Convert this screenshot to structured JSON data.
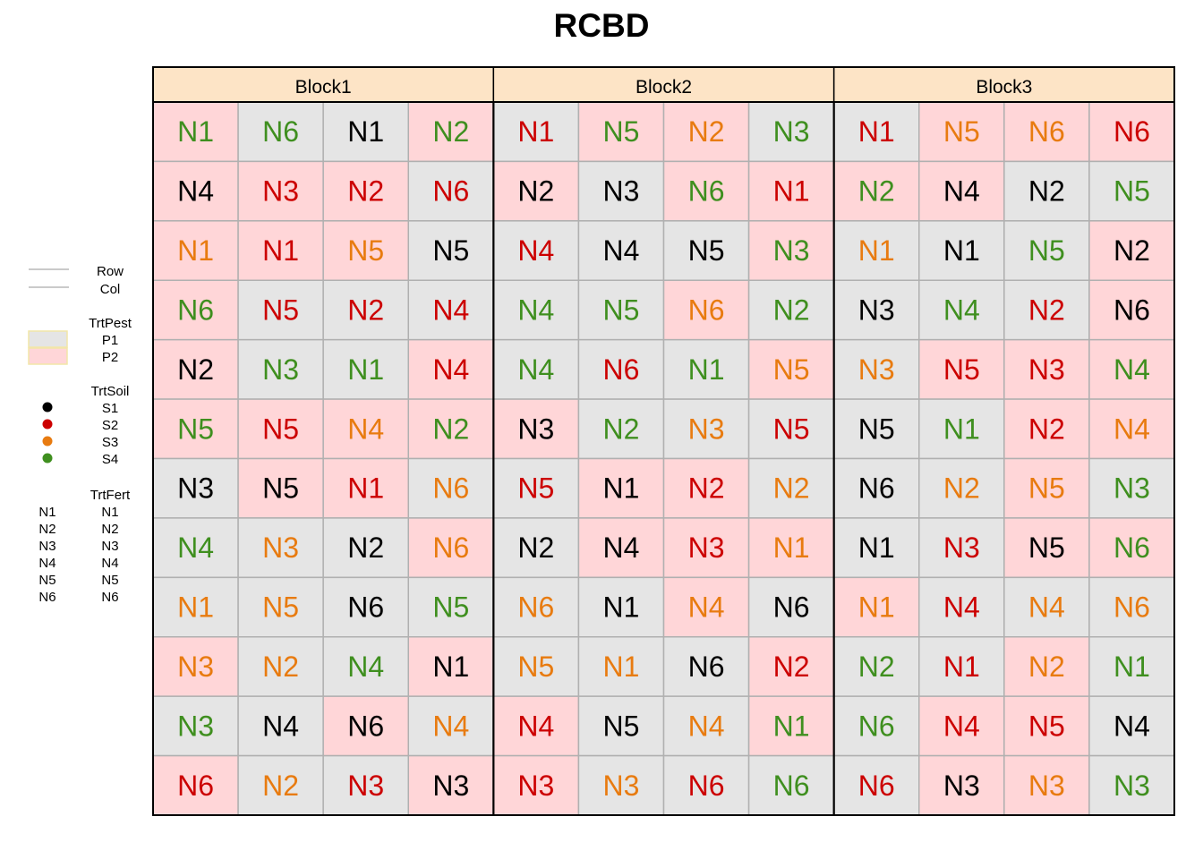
{
  "title": "RCBD",
  "legend": {
    "lines": [
      "Row",
      "Col"
    ],
    "pest_title": "TrtPest",
    "pest": [
      {
        "label": "P1",
        "color": "#e5e5e5"
      },
      {
        "label": "P2",
        "color": "#ffd6d8"
      }
    ],
    "soil_title": "TrtSoil",
    "soil": [
      {
        "label": "S1",
        "color": "#000000"
      },
      {
        "label": "S2",
        "color": "#cc0000"
      },
      {
        "label": "S3",
        "color": "#e87b10"
      },
      {
        "label": "S4",
        "color": "#3f8f1f"
      }
    ],
    "fert_title": "TrtFert",
    "fert": [
      {
        "key": "N1",
        "label": "N1"
      },
      {
        "key": "N2",
        "label": "N2"
      },
      {
        "key": "N3",
        "label": "N3"
      },
      {
        "key": "N4",
        "label": "N4"
      },
      {
        "key": "N5",
        "label": "N5"
      },
      {
        "key": "N6",
        "label": "N6"
      }
    ]
  },
  "blocks": [
    "Block1",
    "Block2",
    "Block3"
  ],
  "colors": {
    "header_fill": "#fde4c6",
    "grid_line": "#b0b0b0",
    "border": "#000000"
  },
  "chart_data": {
    "type": "table",
    "title": "RCBD",
    "pest_colors": {
      "P1": "#e5e5e5",
      "P2": "#ffd6d8"
    },
    "soil_colors": {
      "S1": "#000000",
      "S2": "#cc0000",
      "S3": "#e87b10",
      "S4": "#3f8f1f"
    },
    "rows": [
      [
        [
          "N1",
          "S4",
          "P2"
        ],
        [
          "N6",
          "S4",
          "P1"
        ],
        [
          "N1",
          "S1",
          "P1"
        ],
        [
          "N2",
          "S4",
          "P2"
        ],
        [
          "N1",
          "S2",
          "P1"
        ],
        [
          "N5",
          "S4",
          "P2"
        ],
        [
          "N2",
          "S3",
          "P2"
        ],
        [
          "N3",
          "S4",
          "P1"
        ],
        [
          "N1",
          "S2",
          "P1"
        ],
        [
          "N5",
          "S3",
          "P2"
        ],
        [
          "N6",
          "S3",
          "P2"
        ],
        [
          "N6",
          "S2",
          "P2"
        ]
      ],
      [
        [
          "N4",
          "S1",
          "P2"
        ],
        [
          "N3",
          "S2",
          "P2"
        ],
        [
          "N2",
          "S2",
          "P2"
        ],
        [
          "N6",
          "S2",
          "P1"
        ],
        [
          "N2",
          "S1",
          "P2"
        ],
        [
          "N3",
          "S1",
          "P1"
        ],
        [
          "N6",
          "S4",
          "P2"
        ],
        [
          "N1",
          "S2",
          "P2"
        ],
        [
          "N2",
          "S4",
          "P2"
        ],
        [
          "N4",
          "S1",
          "P2"
        ],
        [
          "N2",
          "S1",
          "P1"
        ],
        [
          "N5",
          "S4",
          "P1"
        ]
      ],
      [
        [
          "N1",
          "S3",
          "P2"
        ],
        [
          "N1",
          "S2",
          "P2"
        ],
        [
          "N5",
          "S3",
          "P2"
        ],
        [
          "N5",
          "S1",
          "P1"
        ],
        [
          "N4",
          "S2",
          "P1"
        ],
        [
          "N4",
          "S1",
          "P1"
        ],
        [
          "N5",
          "S1",
          "P1"
        ],
        [
          "N3",
          "S4",
          "P2"
        ],
        [
          "N1",
          "S3",
          "P1"
        ],
        [
          "N1",
          "S1",
          "P1"
        ],
        [
          "N5",
          "S4",
          "P1"
        ],
        [
          "N2",
          "S1",
          "P2"
        ]
      ],
      [
        [
          "N6",
          "S4",
          "P2"
        ],
        [
          "N5",
          "S2",
          "P1"
        ],
        [
          "N2",
          "S2",
          "P1"
        ],
        [
          "N4",
          "S2",
          "P1"
        ],
        [
          "N4",
          "S4",
          "P1"
        ],
        [
          "N5",
          "S4",
          "P1"
        ],
        [
          "N6",
          "S3",
          "P2"
        ],
        [
          "N2",
          "S4",
          "P1"
        ],
        [
          "N3",
          "S1",
          "P1"
        ],
        [
          "N4",
          "S4",
          "P1"
        ],
        [
          "N2",
          "S2",
          "P1"
        ],
        [
          "N6",
          "S1",
          "P2"
        ]
      ],
      [
        [
          "N2",
          "S1",
          "P2"
        ],
        [
          "N3",
          "S4",
          "P1"
        ],
        [
          "N1",
          "S4",
          "P1"
        ],
        [
          "N4",
          "S2",
          "P2"
        ],
        [
          "N4",
          "S4",
          "P1"
        ],
        [
          "N6",
          "S2",
          "P1"
        ],
        [
          "N1",
          "S4",
          "P1"
        ],
        [
          "N5",
          "S3",
          "P2"
        ],
        [
          "N3",
          "S3",
          "P1"
        ],
        [
          "N5",
          "S2",
          "P2"
        ],
        [
          "N3",
          "S2",
          "P2"
        ],
        [
          "N4",
          "S4",
          "P2"
        ]
      ],
      [
        [
          "N5",
          "S4",
          "P2"
        ],
        [
          "N5",
          "S2",
          "P2"
        ],
        [
          "N4",
          "S3",
          "P2"
        ],
        [
          "N2",
          "S4",
          "P2"
        ],
        [
          "N3",
          "S1",
          "P2"
        ],
        [
          "N2",
          "S4",
          "P1"
        ],
        [
          "N3",
          "S3",
          "P1"
        ],
        [
          "N5",
          "S2",
          "P1"
        ],
        [
          "N5",
          "S1",
          "P1"
        ],
        [
          "N1",
          "S4",
          "P1"
        ],
        [
          "N2",
          "S2",
          "P2"
        ],
        [
          "N4",
          "S3",
          "P2"
        ]
      ],
      [
        [
          "N3",
          "S1",
          "P1"
        ],
        [
          "N5",
          "S1",
          "P2"
        ],
        [
          "N1",
          "S2",
          "P2"
        ],
        [
          "N6",
          "S3",
          "P1"
        ],
        [
          "N5",
          "S2",
          "P1"
        ],
        [
          "N1",
          "S1",
          "P2"
        ],
        [
          "N2",
          "S2",
          "P2"
        ],
        [
          "N2",
          "S3",
          "P1"
        ],
        [
          "N6",
          "S1",
          "P1"
        ],
        [
          "N2",
          "S3",
          "P1"
        ],
        [
          "N5",
          "S3",
          "P2"
        ],
        [
          "N3",
          "S4",
          "P1"
        ]
      ],
      [
        [
          "N4",
          "S4",
          "P1"
        ],
        [
          "N3",
          "S3",
          "P1"
        ],
        [
          "N2",
          "S1",
          "P1"
        ],
        [
          "N6",
          "S3",
          "P2"
        ],
        [
          "N2",
          "S1",
          "P1"
        ],
        [
          "N4",
          "S1",
          "P2"
        ],
        [
          "N3",
          "S2",
          "P2"
        ],
        [
          "N1",
          "S3",
          "P2"
        ],
        [
          "N1",
          "S1",
          "P1"
        ],
        [
          "N3",
          "S2",
          "P1"
        ],
        [
          "N5",
          "S1",
          "P2"
        ],
        [
          "N6",
          "S4",
          "P2"
        ]
      ],
      [
        [
          "N1",
          "S3",
          "P1"
        ],
        [
          "N5",
          "S3",
          "P1"
        ],
        [
          "N6",
          "S1",
          "P1"
        ],
        [
          "N5",
          "S4",
          "P1"
        ],
        [
          "N6",
          "S3",
          "P1"
        ],
        [
          "N1",
          "S1",
          "P1"
        ],
        [
          "N4",
          "S3",
          "P2"
        ],
        [
          "N6",
          "S1",
          "P1"
        ],
        [
          "N1",
          "S3",
          "P2"
        ],
        [
          "N4",
          "S2",
          "P1"
        ],
        [
          "N4",
          "S3",
          "P1"
        ],
        [
          "N6",
          "S3",
          "P1"
        ]
      ],
      [
        [
          "N3",
          "S3",
          "P2"
        ],
        [
          "N2",
          "S3",
          "P1"
        ],
        [
          "N4",
          "S4",
          "P1"
        ],
        [
          "N1",
          "S1",
          "P2"
        ],
        [
          "N5",
          "S3",
          "P1"
        ],
        [
          "N1",
          "S3",
          "P1"
        ],
        [
          "N6",
          "S1",
          "P1"
        ],
        [
          "N2",
          "S2",
          "P2"
        ],
        [
          "N2",
          "S4",
          "P1"
        ],
        [
          "N1",
          "S2",
          "P1"
        ],
        [
          "N2",
          "S3",
          "P2"
        ],
        [
          "N1",
          "S4",
          "P1"
        ]
      ],
      [
        [
          "N3",
          "S4",
          "P1"
        ],
        [
          "N4",
          "S1",
          "P1"
        ],
        [
          "N6",
          "S1",
          "P2"
        ],
        [
          "N4",
          "S3",
          "P1"
        ],
        [
          "N4",
          "S2",
          "P2"
        ],
        [
          "N5",
          "S1",
          "P1"
        ],
        [
          "N4",
          "S3",
          "P1"
        ],
        [
          "N1",
          "S4",
          "P2"
        ],
        [
          "N6",
          "S4",
          "P1"
        ],
        [
          "N4",
          "S2",
          "P2"
        ],
        [
          "N5",
          "S2",
          "P2"
        ],
        [
          "N4",
          "S1",
          "P1"
        ]
      ],
      [
        [
          "N6",
          "S2",
          "P2"
        ],
        [
          "N2",
          "S3",
          "P1"
        ],
        [
          "N3",
          "S2",
          "P1"
        ],
        [
          "N3",
          "S1",
          "P2"
        ],
        [
          "N3",
          "S2",
          "P2"
        ],
        [
          "N3",
          "S3",
          "P1"
        ],
        [
          "N6",
          "S2",
          "P1"
        ],
        [
          "N6",
          "S4",
          "P1"
        ],
        [
          "N6",
          "S2",
          "P1"
        ],
        [
          "N3",
          "S1",
          "P2"
        ],
        [
          "N3",
          "S3",
          "P2"
        ],
        [
          "N3",
          "S4",
          "P1"
        ]
      ]
    ]
  }
}
